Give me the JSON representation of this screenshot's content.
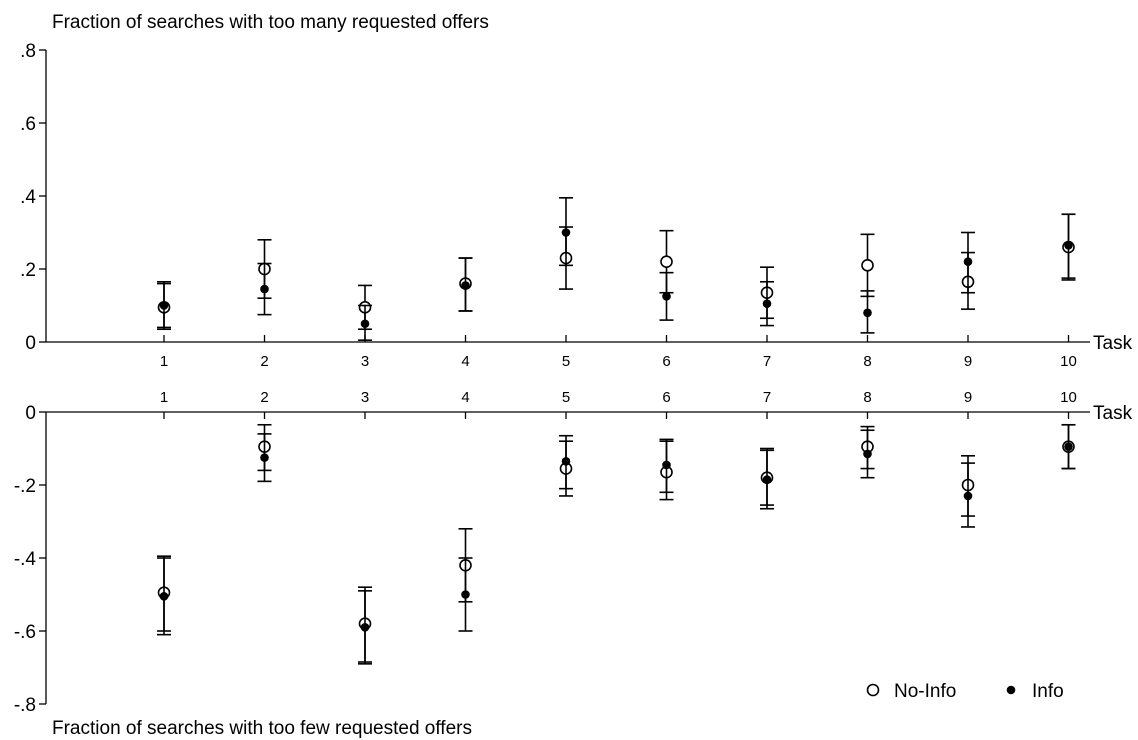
{
  "chart_data": [
    {
      "type": "scatter",
      "title": "Fraction of searches with too many requested offers",
      "xlabel": "Task",
      "categories": [
        "1",
        "2",
        "3",
        "4",
        "5",
        "6",
        "7",
        "8",
        "9",
        "10"
      ],
      "yticks": [
        ".8",
        ".6",
        ".4",
        ".2",
        "0"
      ],
      "ytick_values": [
        0.8,
        0.6,
        0.4,
        0.2,
        0
      ],
      "ylim": [
        0,
        0.8
      ],
      "error_bars": true,
      "series": [
        {
          "name": "No-Info",
          "marker": "hollow-circle",
          "values": [
            0.095,
            0.2,
            0.095,
            0.16,
            0.23,
            0.22,
            0.135,
            0.21,
            0.165,
            0.26
          ],
          "lower": [
            0.035,
            0.12,
            0.035,
            0.085,
            0.145,
            0.135,
            0.065,
            0.125,
            0.09,
            0.17
          ],
          "upper": [
            0.16,
            0.28,
            0.155,
            0.23,
            0.315,
            0.305,
            0.205,
            0.295,
            0.245,
            0.35
          ]
        },
        {
          "name": "Info",
          "marker": "filled-circle",
          "values": [
            0.1,
            0.145,
            0.05,
            0.155,
            0.3,
            0.125,
            0.105,
            0.08,
            0.22,
            0.265
          ],
          "lower": [
            0.04,
            0.075,
            0.005,
            0.085,
            0.21,
            0.06,
            0.045,
            0.025,
            0.135,
            0.175
          ],
          "upper": [
            0.165,
            0.215,
            0.1,
            0.23,
            0.395,
            0.19,
            0.165,
            0.14,
            0.3,
            0.35
          ]
        }
      ]
    },
    {
      "type": "scatter",
      "title": "Fraction of searches with too few requested offers",
      "xlabel": "Task",
      "categories": [
        "1",
        "2",
        "3",
        "4",
        "5",
        "6",
        "7",
        "8",
        "9",
        "10"
      ],
      "yticks": [
        "0",
        "-.2",
        "-.4",
        "-.6",
        "-.8"
      ],
      "ytick_values": [
        0,
        -0.2,
        -0.4,
        -0.6,
        -0.8
      ],
      "ylim": [
        -0.8,
        0
      ],
      "error_bars": true,
      "legend": {
        "position": "bottom-right",
        "items": [
          "No-Info",
          "Info"
        ]
      },
      "series": [
        {
          "name": "No-Info",
          "marker": "hollow-circle",
          "values": [
            -0.495,
            -0.095,
            -0.58,
            -0.42,
            -0.155,
            -0.165,
            -0.18,
            -0.095,
            -0.2,
            -0.095
          ],
          "lower": [
            -0.6,
            -0.16,
            -0.685,
            -0.52,
            -0.21,
            -0.22,
            -0.255,
            -0.155,
            -0.285,
            -0.155
          ],
          "upper": [
            -0.395,
            -0.035,
            -0.48,
            -0.32,
            -0.08,
            -0.08,
            -0.105,
            -0.04,
            -0.12,
            -0.035
          ]
        },
        {
          "name": "Info",
          "marker": "filled-circle",
          "values": [
            -0.505,
            -0.125,
            -0.59,
            -0.5,
            -0.135,
            -0.145,
            -0.185,
            -0.115,
            -0.23,
            -0.095
          ],
          "lower": [
            -0.61,
            -0.19,
            -0.69,
            -0.6,
            -0.23,
            -0.24,
            -0.265,
            -0.18,
            -0.315,
            -0.155
          ],
          "upper": [
            -0.4,
            -0.06,
            -0.49,
            -0.4,
            -0.065,
            -0.075,
            -0.1,
            -0.05,
            -0.14,
            -0.035
          ]
        }
      ]
    }
  ]
}
